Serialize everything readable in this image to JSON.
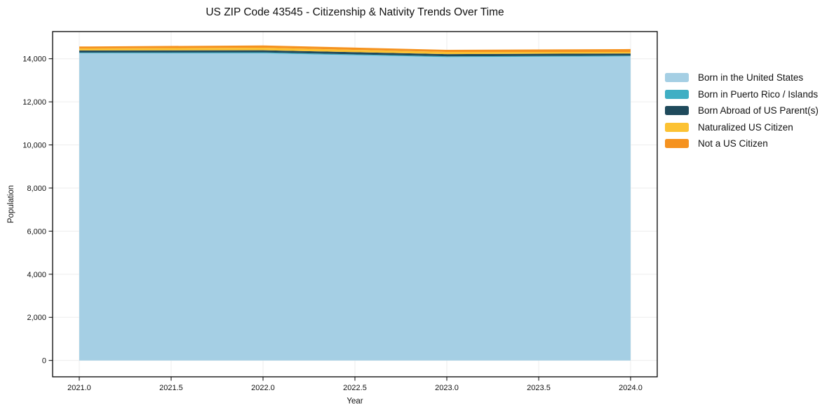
{
  "chart_data": {
    "type": "area",
    "stacked": true,
    "title": "US ZIP Code 43545 - Citizenship & Nativity Trends Over Time",
    "xlabel": "Year",
    "ylabel": "Population",
    "x": [
      2021,
      2022,
      2023,
      2024
    ],
    "series": [
      {
        "name": "Born in the United States",
        "color": "#a5cfe4",
        "values": [
          14255,
          14250,
          14075,
          14110
        ]
      },
      {
        "name": "Born in Puerto Rico / Islands",
        "color": "#3fafc4",
        "values": [
          30,
          45,
          40,
          35
        ]
      },
      {
        "name": "Born Abroad of US Parent(s)",
        "color": "#1f4a5c",
        "values": [
          100,
          100,
          100,
          100
        ]
      },
      {
        "name": "Naturalized US Citizen",
        "color": "#fcc233",
        "values": [
          90,
          115,
          100,
          70
        ]
      },
      {
        "name": "Not a US Citizen",
        "color": "#f5921f",
        "values": [
          90,
          110,
          100,
          135
        ]
      }
    ],
    "xticks": {
      "values": [
        2021,
        2021.5,
        2022,
        2022.5,
        2023,
        2023.5,
        2024
      ],
      "labels": [
        "2021.0",
        "2021.5",
        "2022.0",
        "2022.5",
        "2023.0",
        "2023.5",
        "2024.0"
      ]
    },
    "yticks": {
      "values": [
        0,
        2000,
        4000,
        6000,
        8000,
        10000,
        12000,
        14000
      ],
      "labels": [
        "0",
        "2,000",
        "4,000",
        "6,000",
        "8,000",
        "10,000",
        "12,000",
        "14,000"
      ]
    },
    "xlim": [
      2020.855,
      2024.145
    ],
    "ylim": [
      -760,
      15260
    ],
    "grid": true,
    "grid_color": "#ededed",
    "frame_color": "#000000",
    "legend_position": "right"
  }
}
